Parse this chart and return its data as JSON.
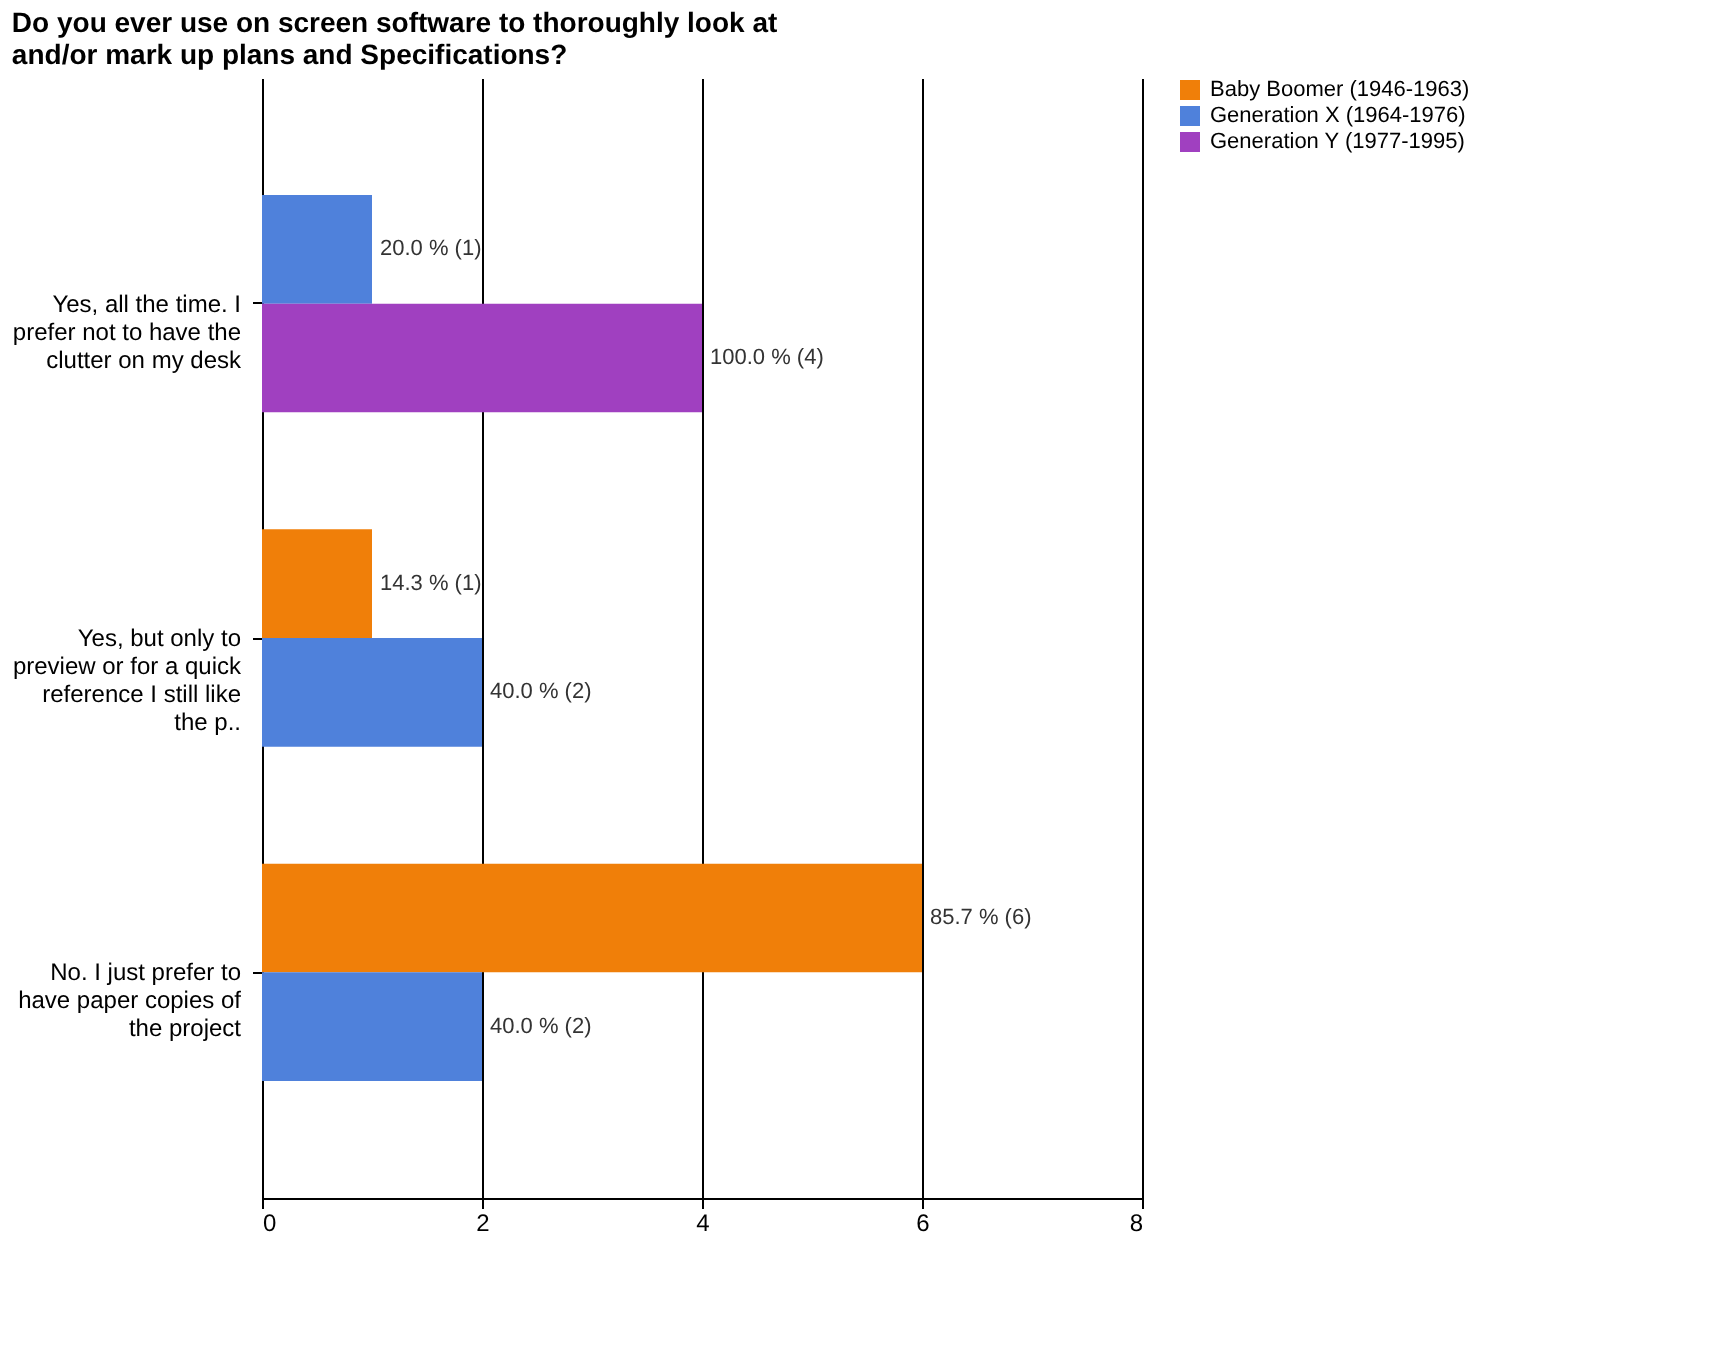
{
  "chart_data": {
    "type": "bar",
    "orientation": "horizontal",
    "title": "Do you ever use on screen software to thoroughly look at and/or mark up plans and Specifications?",
    "categories": [
      "Yes, all the time. I prefer not to have the clutter on my desk",
      "Yes, but only to preview or for a quick reference I still like the p..",
      "No. I just prefer to have paper copies of the project"
    ],
    "series": [
      {
        "name": "Baby Boomer (1946-1963)",
        "color": "#f07f09",
        "values": [
          null,
          1,
          6
        ],
        "value_labels": [
          null,
          "14.3 % (1)",
          "85.7 % (6)"
        ]
      },
      {
        "name": "Generation X (1964-1976)",
        "color": "#4f81db",
        "values": [
          1,
          2,
          2
        ],
        "value_labels": [
          "20.0 % (1)",
          "40.0 % (2)",
          "40.0 % (2)"
        ]
      },
      {
        "name": "Generation Y (1977-1995)",
        "color": "#a040c0",
        "values": [
          4,
          null,
          null
        ],
        "value_labels": [
          "100.0 % (4)",
          null,
          null
        ]
      }
    ],
    "xlim": [
      0,
      8
    ],
    "xticks": [
      0,
      2,
      4,
      6,
      8
    ],
    "grid": "x",
    "legend": "right"
  }
}
